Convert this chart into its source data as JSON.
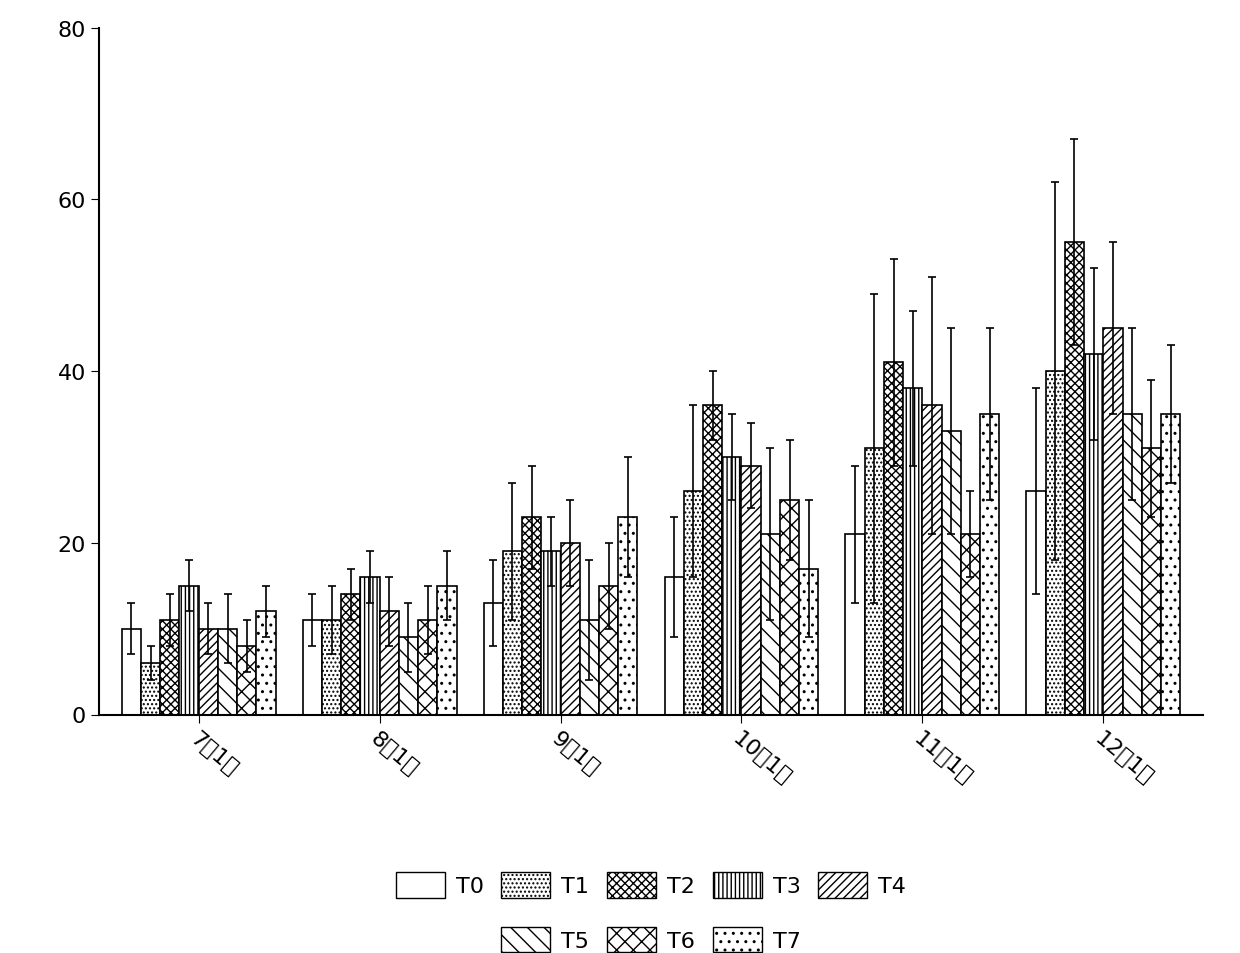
{
  "categories": [
    "7月1日",
    "8月1日",
    "9月1日",
    "10月1日",
    "11月1日",
    "12月1日"
  ],
  "treatments": [
    "T0",
    "T1",
    "T2",
    "T3",
    "T4",
    "T5",
    "T6",
    "T7"
  ],
  "values": {
    "T0": [
      10,
      11,
      13,
      16,
      21,
      26
    ],
    "T1": [
      6,
      11,
      19,
      26,
      31,
      40
    ],
    "T2": [
      11,
      14,
      23,
      36,
      41,
      55
    ],
    "T3": [
      15,
      16,
      19,
      30,
      38,
      42
    ],
    "T4": [
      10,
      12,
      20,
      29,
      36,
      45
    ],
    "T5": [
      10,
      9,
      11,
      21,
      33,
      35
    ],
    "T6": [
      8,
      11,
      15,
      25,
      21,
      31
    ],
    "T7": [
      12,
      15,
      23,
      17,
      35,
      35
    ]
  },
  "errors": {
    "T0": [
      3,
      3,
      5,
      7,
      8,
      12
    ],
    "T1": [
      2,
      4,
      8,
      10,
      18,
      22
    ],
    "T2": [
      3,
      3,
      6,
      4,
      12,
      12
    ],
    "T3": [
      3,
      3,
      4,
      5,
      9,
      10
    ],
    "T4": [
      3,
      4,
      5,
      5,
      15,
      10
    ],
    "T5": [
      4,
      4,
      7,
      10,
      12,
      10
    ],
    "T6": [
      3,
      4,
      5,
      7,
      5,
      8
    ],
    "T7": [
      3,
      4,
      7,
      8,
      10,
      8
    ]
  },
  "ylim": [
    0,
    80
  ],
  "yticks": [
    0,
    20,
    40,
    60,
    80
  ],
  "background_color": "#ffffff",
  "bar_linewidth": 1.2,
  "group_width": 0.85,
  "xtick_rotation": -40,
  "fontsize": 16
}
